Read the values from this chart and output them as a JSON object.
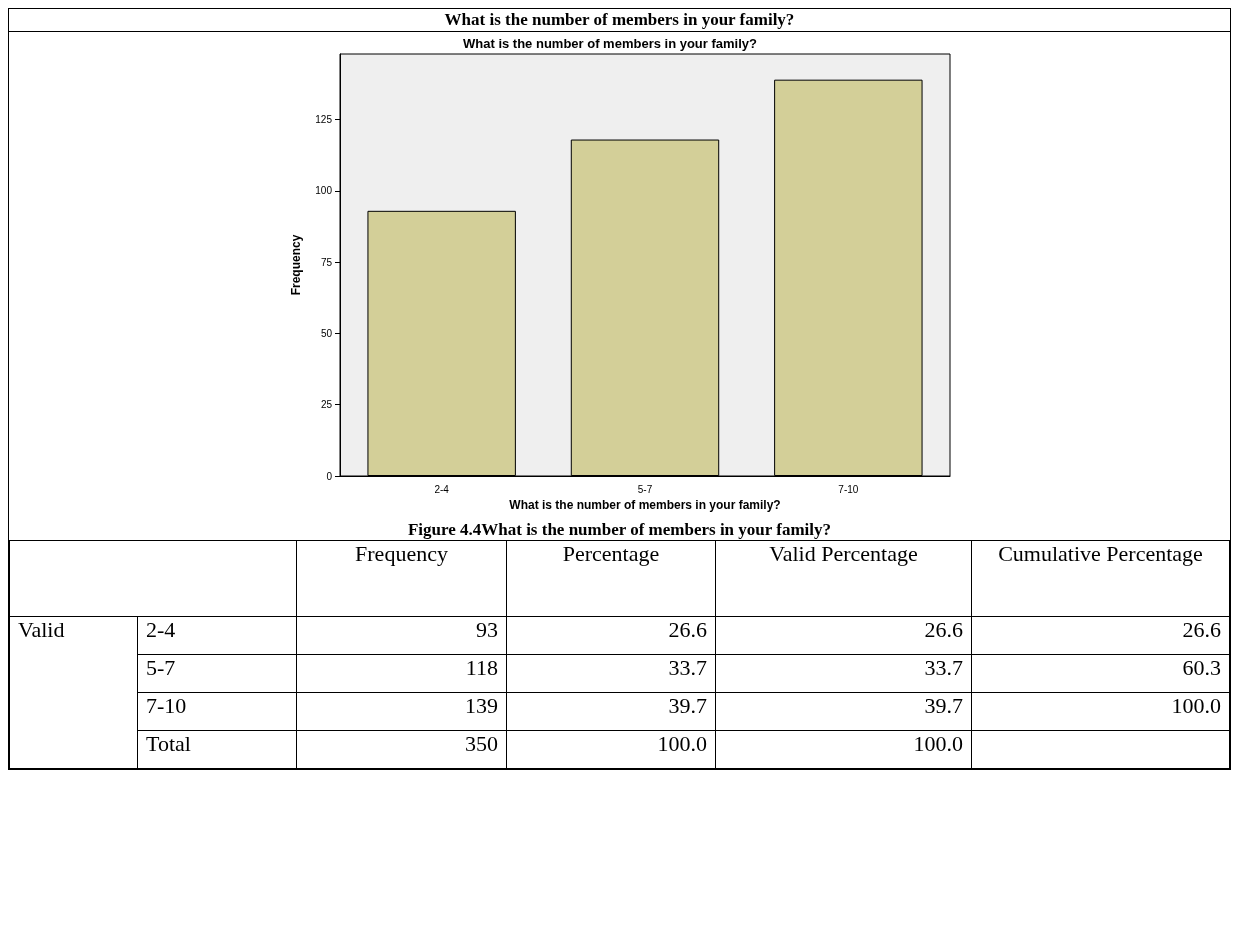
{
  "chart_data": [
    {
      "type": "bar",
      "title": "What is the number of members in your family?",
      "xlabel": "What is the number of members in your family?",
      "ylabel": "Frequency",
      "categories": [
        "2-4",
        "5-7",
        "7-10"
      ],
      "values": [
        93,
        118,
        139
      ],
      "color": "#d3cf98",
      "ylim": [
        0,
        148
      ],
      "yticks": [
        0,
        25,
        50,
        75,
        100,
        125
      ],
      "grid": false,
      "annotations": [
        "What is the number of members in your family?",
        "Figure 4.4What is the number of members in your family?"
      ]
    },
    {
      "type": "other",
      "annotations": [
        "Frequency",
        "Percentage",
        "Valid Percentage",
        "Cumulative Percentage",
        "Valid",
        "2-4",
        "93",
        "26.6",
        "26.6",
        "26.6",
        "5-7",
        "118",
        "33.7",
        "33.7",
        "60.3",
        "7-10",
        "139",
        "39.7",
        "39.7",
        "100.0",
        "Total",
        "350",
        "100.0",
        "100.0"
      ]
    }
  ]
}
